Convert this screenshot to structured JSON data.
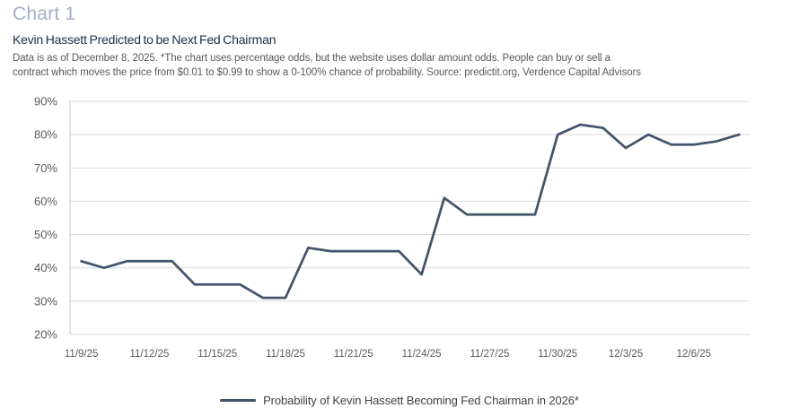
{
  "header": {
    "chart_label": "Chart 1",
    "title": "Kevin Hassett Predicted to be Next Fed Chairman",
    "note_lines": [
      "Data is as of December 8, 2025. *The chart uses percentage odds, but the website uses dollar amount odds. People can buy or sell a",
      "contract which moves the price from $0.01 to $0.99 to show a 0-100% chance of probability. Source: predictit.org, Verdence Capital Advisors"
    ]
  },
  "colors": {
    "chart_label": "#a5aec8",
    "title": "#1f2b4c",
    "note": "#595959",
    "axis_text": "#595959",
    "gridline": "#d9d9d9",
    "axis_line": "#c6c6c6",
    "line": "#44546a",
    "legend_text": "#404040"
  },
  "chart_data": {
    "type": "line",
    "title": "Kevin Hassett Predicted to be Next Fed Chairman",
    "x": [
      "11/9/25",
      "11/10/25",
      "11/11/25",
      "11/12/25",
      "11/13/25",
      "11/14/25",
      "11/15/25",
      "11/16/25",
      "11/17/25",
      "11/18/25",
      "11/19/25",
      "11/20/25",
      "11/21/25",
      "11/22/25",
      "11/23/25",
      "11/24/25",
      "11/25/25",
      "11/26/25",
      "11/27/25",
      "11/28/25",
      "11/29/25",
      "11/30/25",
      "12/1/25",
      "12/2/25",
      "12/3/25",
      "12/4/25",
      "12/5/25",
      "12/6/25",
      "12/7/25",
      "12/8/25"
    ],
    "series": [
      {
        "name": "Probability of Kevin Hassett Becoming Fed Chairman in 2026*",
        "values": [
          42,
          40,
          42,
          42,
          42,
          35,
          35,
          35,
          31,
          31,
          46,
          45,
          45,
          45,
          45,
          38,
          61,
          56,
          56,
          56,
          56,
          80,
          83,
          82,
          76,
          80,
          77,
          77,
          78,
          80
        ]
      }
    ],
    "x_tick_labels": [
      "11/9/25",
      "11/12/25",
      "11/15/25",
      "11/18/25",
      "11/21/25",
      "11/24/25",
      "11/27/25",
      "11/30/25",
      "12/3/25",
      "12/6/25"
    ],
    "x_tick_step": 3,
    "y_ticks": [
      20,
      30,
      40,
      50,
      60,
      70,
      80,
      90
    ],
    "y_tick_suffix": "%",
    "ylim": [
      20,
      90
    ],
    "xlabel": "",
    "ylabel": "",
    "grid": "horizontal",
    "legend_position": "bottom"
  }
}
